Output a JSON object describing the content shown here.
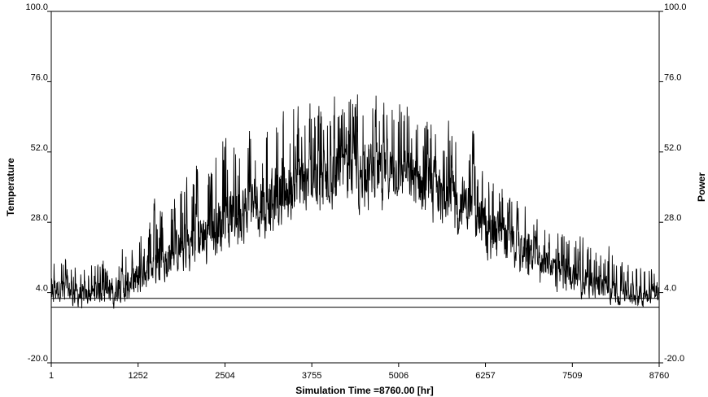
{
  "chart_data": {
    "type": "line",
    "xlabel": "Simulation Time =8760.00 [hr]",
    "ylabel_left": "Temperature",
    "ylabel_right": "Power",
    "xlim": [
      1,
      8760
    ],
    "ylim": [
      -20,
      100
    ],
    "x_ticks": [
      "1",
      "1252",
      "2504",
      "3755",
      "5006",
      "6257",
      "7509",
      "8760"
    ],
    "y_ticks_left": [
      "-20.0",
      "4.0",
      "28.0",
      "52.0",
      "76.0",
      "100.0"
    ],
    "y_ticks_right": [
      "-20.0",
      "4.0",
      "28.0",
      "52.0",
      "76.0",
      "100.0"
    ],
    "grid": false,
    "series": [
      {
        "name": "",
        "color": "#000000",
        "x": [
          1,
          500,
          1000,
          1500,
          2000,
          2500,
          3000,
          3500,
          4000,
          4500,
          5000,
          5500,
          6000,
          6500,
          7000,
          7500,
          8000,
          8500,
          8760
        ],
        "mean": [
          6,
          3,
          6,
          13,
          21,
          29,
          35,
          40,
          44,
          46,
          45,
          41,
          34,
          24,
          16,
          10,
          5,
          3,
          6
        ],
        "min": [
          -1,
          -4,
          -3,
          2,
          8,
          13,
          18,
          23,
          27,
          29,
          27,
          24,
          17,
          10,
          4,
          1,
          -1,
          -2,
          0
        ],
        "max": [
          22,
          18,
          24,
          40,
          55,
          68,
          76,
          78,
          81,
          82,
          80,
          75,
          65,
          50,
          34,
          30,
          25,
          18,
          22
        ]
      },
      {
        "name": "",
        "color": "#000000",
        "x": [
          1,
          8760
        ],
        "y": [
          2,
          2
        ]
      },
      {
        "name": "",
        "color": "#000000",
        "x": [
          1,
          8760
        ],
        "y": [
          -1,
          -1
        ]
      }
    ]
  }
}
